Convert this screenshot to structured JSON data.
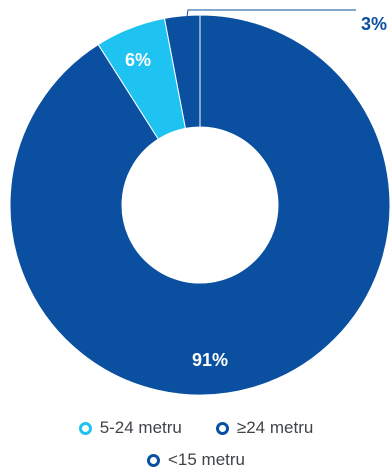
{
  "chart_data": {
    "type": "pie",
    "donut": true,
    "title": "",
    "categories": [
      "<15 metru",
      "5-24 metru",
      "≥24 metru"
    ],
    "values": [
      91,
      6,
      3
    ],
    "data_labels": [
      "91%",
      "6%",
      "3%"
    ],
    "colors": [
      "#0a4fa0",
      "#1ec3f2",
      "#0a4fa0"
    ],
    "legend": {
      "placement": "bottom",
      "items": [
        {
          "label": "5-24 metru",
          "color": "#1ec3f2"
        },
        {
          "label": "≥24 metru",
          "color": "#0a4fa0"
        },
        {
          "label": "<15 metru",
          "color": "#0a4fa0"
        }
      ]
    }
  }
}
